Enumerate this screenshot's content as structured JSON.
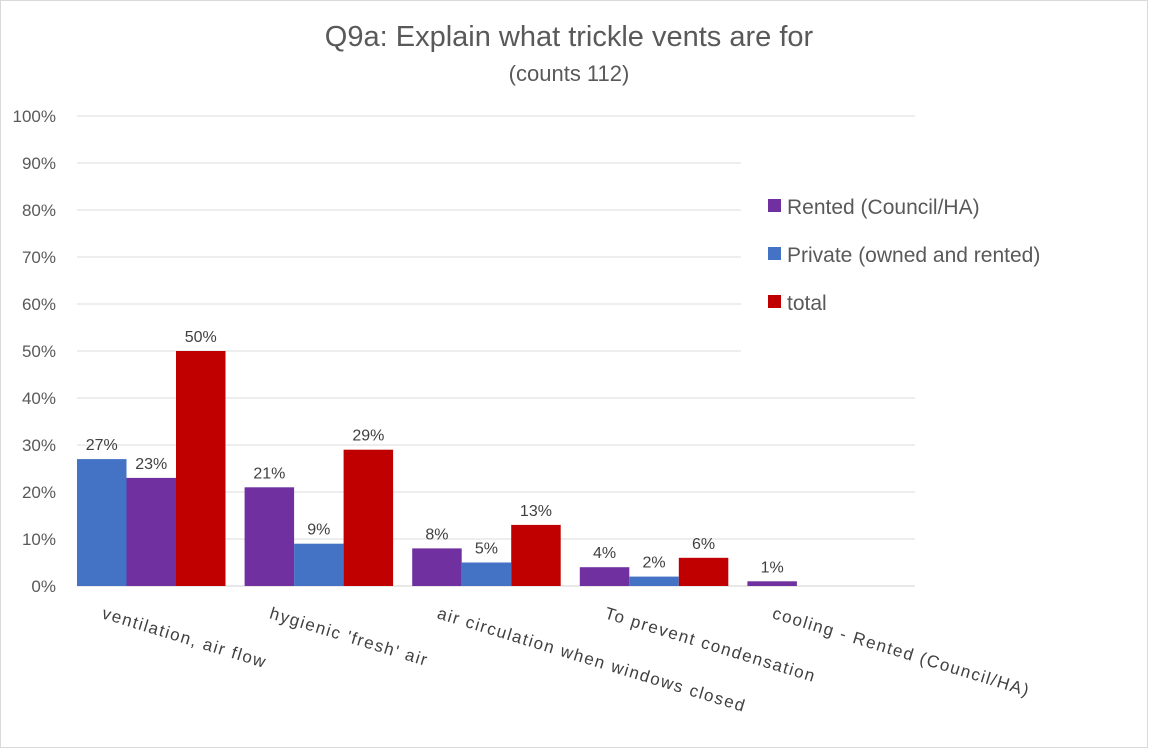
{
  "chart_data": {
    "type": "bar",
    "title": "Q9a: Explain what trickle vents are for",
    "subtitle": "(counts 112)",
    "categories": [
      "ventilation, air flow",
      "hygienic 'fresh' air",
      "air circulation when windows closed",
      "To prevent condensation",
      "cooling  - Rented (Council/HA)"
    ],
    "bars": [
      [
        {
          "series": "Private (owned and rented)",
          "value": 27,
          "label": "27%"
        },
        {
          "series": "Rented (Council/HA)",
          "value": 23,
          "label": "23%"
        },
        {
          "series": "total",
          "value": 50,
          "label": "50%"
        }
      ],
      [
        {
          "series": "Rented (Council/HA)",
          "value": 21,
          "label": "21%"
        },
        {
          "series": "Private (owned and rented)",
          "value": 9,
          "label": "9%"
        },
        {
          "series": "total",
          "value": 29,
          "label": "29%"
        }
      ],
      [
        {
          "series": "Rented (Council/HA)",
          "value": 8,
          "label": "8%"
        },
        {
          "series": "Private (owned and rented)",
          "value": 5,
          "label": "5%"
        },
        {
          "series": "total",
          "value": 13,
          "label": "13%"
        }
      ],
      [
        {
          "series": "Rented (Council/HA)",
          "value": 4,
          "label": "4%"
        },
        {
          "series": "Private (owned and rented)",
          "value": 2,
          "label": "2%"
        },
        {
          "series": "total",
          "value": 6,
          "label": "6%"
        }
      ],
      [
        {
          "series": "Rented (Council/HA)",
          "value": 1,
          "label": "1%"
        }
      ]
    ],
    "series": [
      {
        "name": "Rented (Council/HA)",
        "color": "#7030a0"
      },
      {
        "name": "Private (owned and rented)",
        "color": "#4472c4"
      },
      {
        "name": "total",
        "color": "#c00000"
      }
    ],
    "yticks": [
      "0%",
      "10%",
      "20%",
      "30%",
      "40%",
      "50%",
      "60%",
      "70%",
      "80%",
      "90%",
      "100%"
    ],
    "ylim": [
      0,
      100
    ],
    "grid": true,
    "legend_position": "right"
  }
}
